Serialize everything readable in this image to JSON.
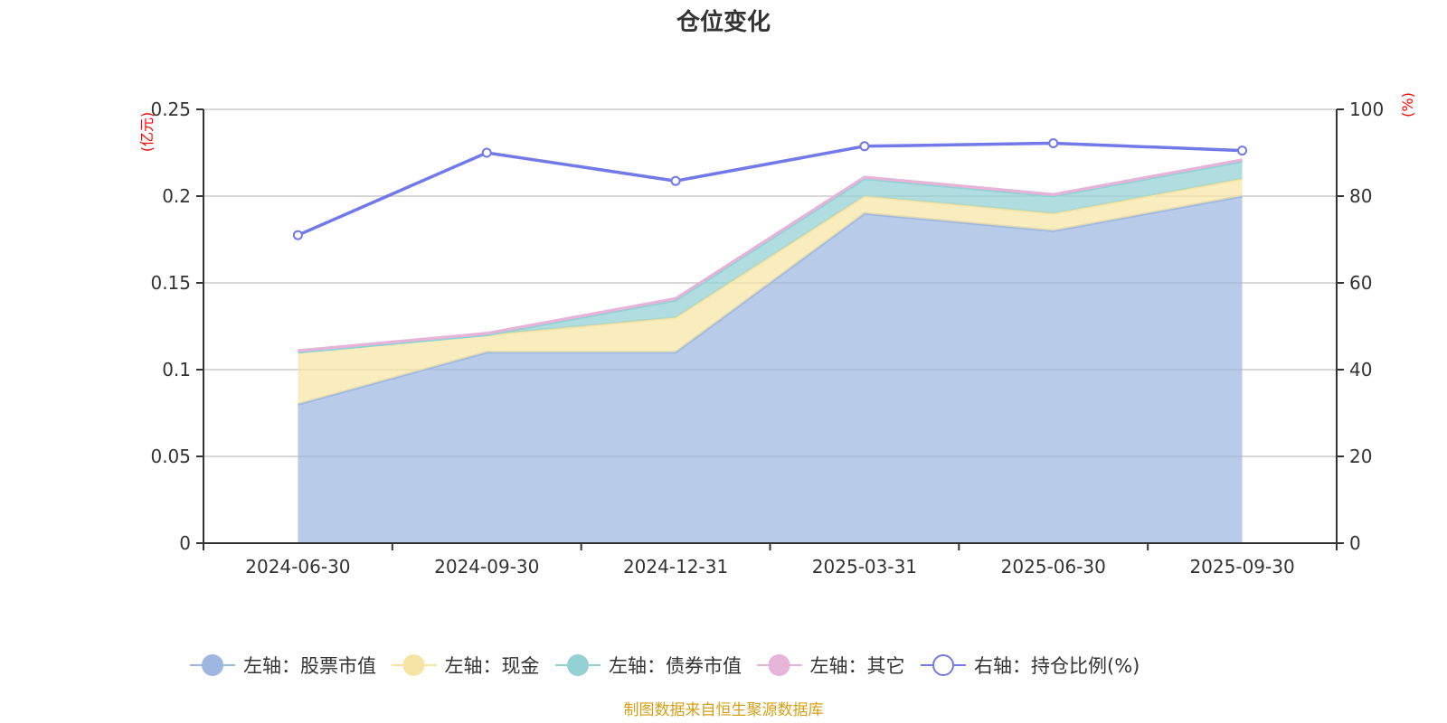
{
  "chart_data": {
    "type": "area",
    "title": "仓位变化",
    "source": "制图数据来自恒生聚源数据库",
    "left_axis_unit": "(亿元)",
    "right_axis_unit": "(%)",
    "categories": [
      "2024-06-30",
      "2024-09-30",
      "2024-12-31",
      "2025-03-31",
      "2025-06-30",
      "2025-09-30"
    ],
    "y_left": {
      "min": 0,
      "max": 0.25,
      "ticks": [
        0,
        0.05,
        0.1,
        0.15,
        0.2,
        0.25
      ],
      "tick_labels": [
        "0",
        "0.05",
        "0.1",
        "0.15",
        "0.2",
        "0.25"
      ]
    },
    "y_right": {
      "min": 0,
      "max": 100,
      "ticks": [
        0,
        20,
        40,
        60,
        80,
        100
      ],
      "tick_labels": [
        "0",
        "20",
        "40",
        "60",
        "80",
        "100"
      ]
    },
    "grid": true,
    "legend_position": "bottom",
    "stacked_series": [
      {
        "name": "左轴：股票市值",
        "color": "#9db7e0",
        "values": [
          0.08,
          0.11,
          0.11,
          0.19,
          0.18,
          0.2
        ]
      },
      {
        "name": "左轴：现金",
        "color": "#f6e4a4",
        "values": [
          0.03,
          0.01,
          0.02,
          0.01,
          0.01,
          0.01
        ]
      },
      {
        "name": "左轴：债券市值",
        "color": "#92d1d4",
        "values": [
          0,
          0,
          0.01,
          0.01,
          0.01,
          0.01
        ]
      },
      {
        "name": "左轴：其它",
        "color": "#e6b3d9",
        "values": [
          0.001,
          0.001,
          0.001,
          0.001,
          0.001,
          0.001
        ]
      }
    ],
    "line_series": {
      "name": "右轴：持仓比例(%)",
      "color": "#7279e8",
      "axis": "right",
      "values": [
        71,
        90,
        83.5,
        91.5,
        92.2,
        90.5
      ]
    }
  }
}
